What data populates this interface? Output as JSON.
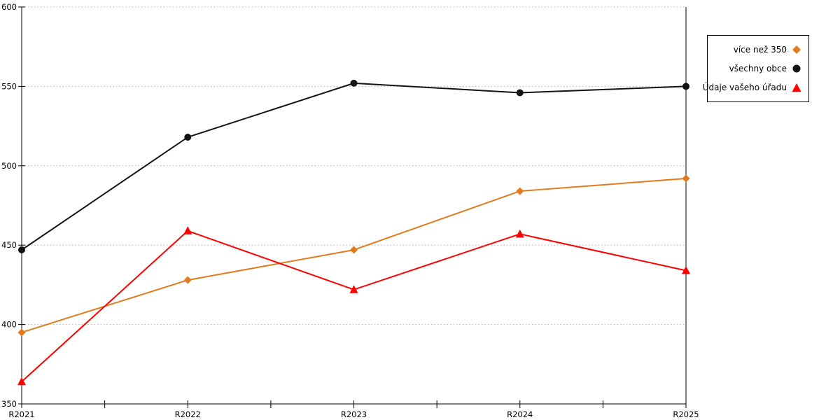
{
  "chart_data": {
    "type": "line",
    "title": "",
    "xlabel": "",
    "ylabel": "",
    "categories": [
      "R2021",
      "R2022",
      "R2023",
      "R2024",
      "R2025"
    ],
    "series": [
      {
        "name": "více než 350",
        "marker": "diamond",
        "color": "#E07B1E",
        "values": [
          395,
          428,
          447,
          484,
          492
        ]
      },
      {
        "name": "všechny obce",
        "marker": "circle",
        "color": "#141414",
        "values": [
          447,
          518,
          552,
          546,
          550
        ]
      },
      {
        "name": "Údaje vašeho úřadu",
        "marker": "triangle",
        "color": "#FF0000",
        "values": [
          364,
          459,
          422,
          457,
          434
        ]
      }
    ],
    "ylim": [
      350,
      600
    ],
    "yticks": [
      350,
      400,
      450,
      500,
      550,
      600
    ],
    "x_minor_ticks": true,
    "grid": "horizontal-dotted",
    "grid_color": "#b0b0b0",
    "legend_position": "top-right-outside",
    "frame": "left-bottom-right"
  },
  "legend": {
    "items": [
      {
        "label": "více než 350",
        "icon": "diamond-icon",
        "color": "#E07B1E"
      },
      {
        "label": "všechny obce",
        "icon": "circle-icon",
        "color": "#141414"
      },
      {
        "label": "Údaje vašeho úřadu",
        "icon": "triangle-icon",
        "color": "#FF0000"
      }
    ]
  }
}
